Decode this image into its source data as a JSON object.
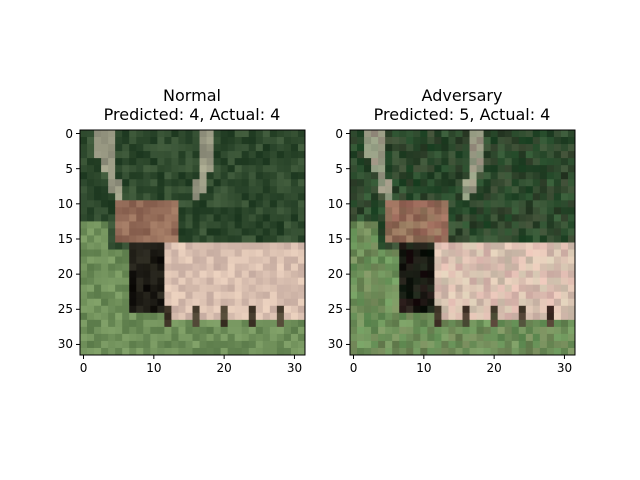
{
  "chart_data": [
    {
      "type": "image",
      "title_line1": "Normal",
      "title_line2": "Predicted: 4, Actual: 4",
      "xticks": [
        "0",
        "10",
        "20",
        "30"
      ],
      "yticks": [
        "0",
        "5",
        "10",
        "15",
        "20",
        "25",
        "30"
      ],
      "xlim": [
        -0.5,
        31.5
      ],
      "ylim": [
        31.5,
        -0.5
      ],
      "image_size": [
        32,
        32
      ],
      "content": "low-resolution photo of a deer lying in grass"
    },
    {
      "type": "image",
      "title_line1": "Adversary",
      "title_line2": "Predicted: 5, Actual: 4",
      "xticks": [
        "0",
        "10",
        "20",
        "30"
      ],
      "yticks": [
        "0",
        "5",
        "10",
        "15",
        "20",
        "25",
        "30"
      ],
      "xlim": [
        -0.5,
        31.5
      ],
      "ylim": [
        31.5,
        -0.5
      ],
      "image_size": [
        32,
        32
      ],
      "content": "low-resolution photo of a deer lying in grass"
    }
  ],
  "colors": {
    "background_dark": "#2f4a2e",
    "grass": "#6f8f5a",
    "antler": "#9a9a84",
    "body": "#d9bfb0",
    "shadow": "#1c1a14"
  }
}
